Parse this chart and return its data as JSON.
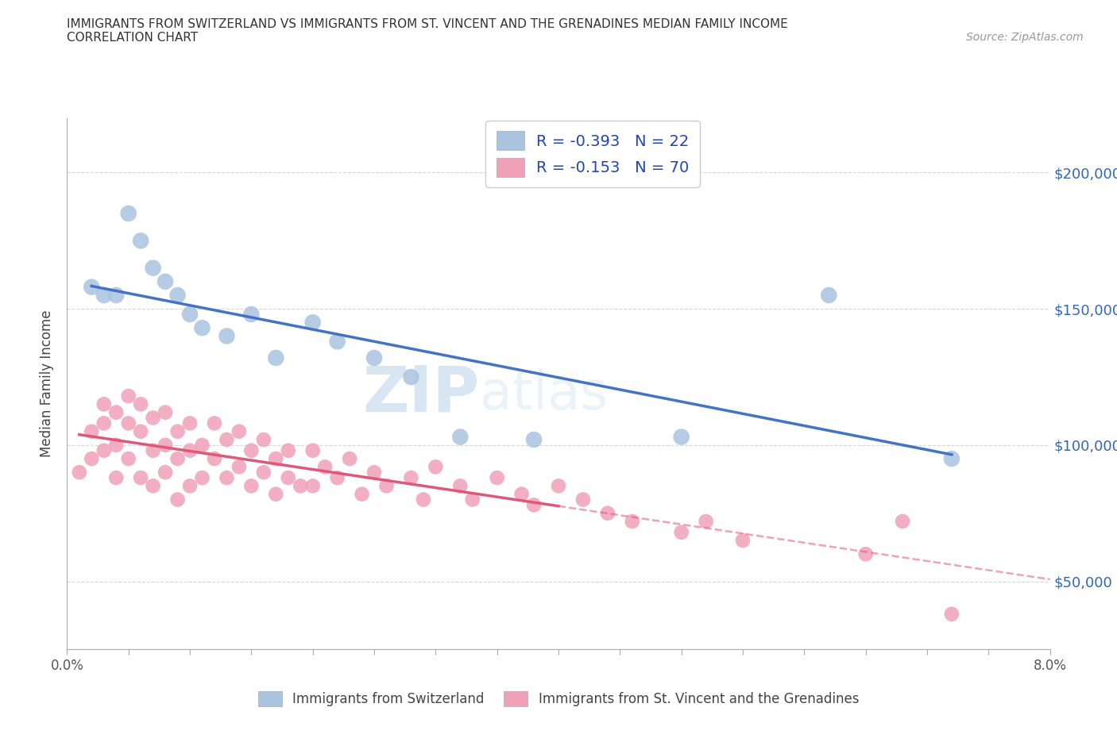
{
  "title_line1": "IMMIGRANTS FROM SWITZERLAND VS IMMIGRANTS FROM ST. VINCENT AND THE GRENADINES MEDIAN FAMILY INCOME",
  "title_line2": "CORRELATION CHART",
  "source_text": "Source: ZipAtlas.com",
  "ylabel": "Median Family Income",
  "xlim": [
    0.0,
    0.08
  ],
  "ylim": [
    25000,
    220000
  ],
  "background_color": "#ffffff",
  "grid_color": "#cccccc",
  "blue_color": "#aac4e0",
  "pink_color": "#f0a0b8",
  "blue_line_color": "#4472c4",
  "pink_line_color": "#e05878",
  "legend_R_blue": "R = -0.393",
  "legend_N_blue": "N = 22",
  "legend_R_pink": "R = -0.153",
  "legend_N_pink": "N = 70",
  "legend_label_blue": "Immigrants from Switzerland",
  "legend_label_pink": "Immigrants from St. Vincent and the Grenadines",
  "watermark_zip": "ZIP",
  "watermark_atlas": "atlas",
  "swiss_x": [
    0.002,
    0.003,
    0.004,
    0.005,
    0.006,
    0.007,
    0.008,
    0.009,
    0.01,
    0.011,
    0.013,
    0.015,
    0.017,
    0.02,
    0.022,
    0.025,
    0.028,
    0.032,
    0.038,
    0.05,
    0.062,
    0.072
  ],
  "swiss_y": [
    158000,
    155000,
    155000,
    185000,
    175000,
    165000,
    160000,
    155000,
    148000,
    143000,
    140000,
    148000,
    132000,
    145000,
    138000,
    132000,
    125000,
    103000,
    102000,
    103000,
    155000,
    95000
  ],
  "svg_x": [
    0.001,
    0.002,
    0.002,
    0.003,
    0.003,
    0.003,
    0.004,
    0.004,
    0.004,
    0.005,
    0.005,
    0.005,
    0.006,
    0.006,
    0.006,
    0.007,
    0.007,
    0.007,
    0.008,
    0.008,
    0.008,
    0.009,
    0.009,
    0.009,
    0.01,
    0.01,
    0.01,
    0.011,
    0.011,
    0.012,
    0.012,
    0.013,
    0.013,
    0.014,
    0.014,
    0.015,
    0.015,
    0.016,
    0.016,
    0.017,
    0.017,
    0.018,
    0.018,
    0.019,
    0.02,
    0.02,
    0.021,
    0.022,
    0.023,
    0.024,
    0.025,
    0.026,
    0.028,
    0.029,
    0.03,
    0.032,
    0.033,
    0.035,
    0.037,
    0.038,
    0.04,
    0.042,
    0.044,
    0.046,
    0.05,
    0.052,
    0.055,
    0.065,
    0.068,
    0.072
  ],
  "svg_y": [
    90000,
    105000,
    95000,
    115000,
    108000,
    98000,
    112000,
    100000,
    88000,
    118000,
    108000,
    95000,
    115000,
    105000,
    88000,
    110000,
    98000,
    85000,
    112000,
    100000,
    90000,
    105000,
    95000,
    80000,
    108000,
    98000,
    85000,
    100000,
    88000,
    108000,
    95000,
    102000,
    88000,
    105000,
    92000,
    98000,
    85000,
    102000,
    90000,
    95000,
    82000,
    98000,
    88000,
    85000,
    98000,
    85000,
    92000,
    88000,
    95000,
    82000,
    90000,
    85000,
    88000,
    80000,
    92000,
    85000,
    80000,
    88000,
    82000,
    78000,
    85000,
    80000,
    75000,
    72000,
    68000,
    72000,
    65000,
    60000,
    72000,
    38000
  ],
  "ytick_positions": [
    50000,
    100000,
    150000,
    200000
  ],
  "ytick_labels": [
    "$50,000",
    "$100,000",
    "$150,000",
    "$200,000"
  ]
}
